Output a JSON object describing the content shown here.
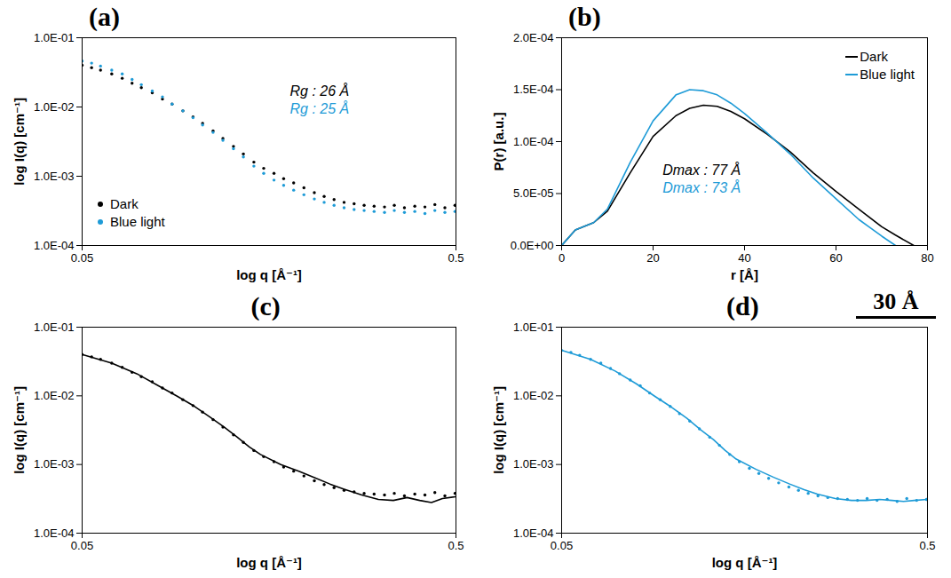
{
  "chart_data": [
    {
      "panel_label": "(a)",
      "type": "scatter",
      "log": true,
      "x_label": "log q [Å⁻¹]",
      "y_label": "log I(q) [cm⁻¹]",
      "xlim": [
        0.05,
        0.5
      ],
      "xticks": [
        0.05,
        0.5
      ],
      "ylim": [
        0.0001,
        0.1
      ],
      "yticks": [
        {
          "value": 0.0001,
          "label": "1.0E-04"
        },
        {
          "value": 0.001,
          "label": "1.0E-03"
        },
        {
          "value": 0.01,
          "label": "1.0E-02"
        },
        {
          "value": 0.1,
          "label": "1.0E-01"
        }
      ],
      "legend": "lower left",
      "annotations": [
        {
          "text": "Rg : 26 Å",
          "color": "#000000"
        },
        {
          "text": "Rg : 25 Å",
          "color": "#1e9bd7"
        }
      ],
      "x": [
        0.05,
        0.053,
        0.056,
        0.06,
        0.064,
        0.068,
        0.072,
        0.077,
        0.082,
        0.087,
        0.093,
        0.099,
        0.105,
        0.112,
        0.119,
        0.127,
        0.135,
        0.144,
        0.153,
        0.163,
        0.173,
        0.184,
        0.196,
        0.209,
        0.222,
        0.236,
        0.251,
        0.267,
        0.284,
        0.302,
        0.322,
        0.342,
        0.364,
        0.388,
        0.413,
        0.439,
        0.467,
        0.497
      ],
      "series": [
        {
          "name": "Dark",
          "color": "#000000",
          "marker": "circle",
          "values": [
            0.04,
            0.037,
            0.034,
            0.03,
            0.026,
            0.022,
            0.019,
            0.016,
            0.013,
            0.011,
            0.0088,
            0.0072,
            0.0058,
            0.0045,
            0.0035,
            0.0027,
            0.0021,
            0.0016,
            0.0013,
            0.0011,
            0.00092,
            0.0008,
            0.00068,
            0.00058,
            0.00051,
            0.00046,
            0.00042,
            0.0004,
            0.00038,
            0.00037,
            0.00036,
            0.00038,
            0.00035,
            0.00037,
            0.00036,
            0.00039,
            0.00035,
            0.00038
          ]
        },
        {
          "name": "Blue light",
          "color": "#1e9bd7",
          "marker": "circle",
          "values": [
            0.046,
            0.043,
            0.039,
            0.034,
            0.03,
            0.025,
            0.021,
            0.017,
            0.014,
            0.011,
            0.0088,
            0.007,
            0.0055,
            0.0043,
            0.0033,
            0.0025,
            0.0019,
            0.0014,
            0.0011,
            0.00088,
            0.00074,
            0.00063,
            0.00054,
            0.00047,
            0.00042,
            0.00038,
            0.00035,
            0.00033,
            0.00032,
            0.00031,
            0.0003,
            0.00032,
            0.0003,
            0.00031,
            0.00029,
            0.00032,
            0.0003,
            0.00031
          ]
        }
      ]
    },
    {
      "panel_label": "(b)",
      "type": "line",
      "x_label": "r [Å]",
      "y_label": "P(r) [a.u.]",
      "xlim": [
        0,
        80
      ],
      "xticks": [
        0,
        20,
        40,
        60,
        80
      ],
      "ylim": [
        0,
        0.0002
      ],
      "yticks": [
        {
          "value": 0,
          "label": "0.0E+00"
        },
        {
          "value": 5e-05,
          "label": "5.0E-05"
        },
        {
          "value": 0.0001,
          "label": "1.0E-04"
        },
        {
          "value": 0.00015,
          "label": "1.5E-04"
        },
        {
          "value": 0.0002,
          "label": "2.0E-04"
        }
      ],
      "legend": "upper right",
      "annotations": [
        {
          "text": "Dmax : 77 Å",
          "color": "#000000"
        },
        {
          "text": "Dmax : 73 Å",
          "color": "#1e9bd7"
        }
      ],
      "x": [
        0,
        3,
        7,
        10,
        15,
        20,
        25,
        28,
        31,
        34,
        37,
        40,
        45,
        50,
        55,
        60,
        65,
        70,
        73,
        77
      ],
      "series": [
        {
          "name": "Dark",
          "color": "#000000",
          "values": [
            0,
            1.5e-05,
            2.2e-05,
            3.3e-05,
            7e-05,
            0.000105,
            0.000125,
            0.000132,
            0.000135,
            0.000134,
            0.000129,
            0.000122,
            0.000107,
            9e-05,
            7e-05,
            5.2e-05,
            3.5e-05,
            1.8e-05,
            1e-05,
            0
          ]
        },
        {
          "name": "Blue light",
          "color": "#1e9bd7",
          "values": [
            0,
            1.5e-05,
            2.2e-05,
            3.5e-05,
            8e-05,
            0.00012,
            0.000145,
            0.00015,
            0.000149,
            0.000145,
            0.000137,
            0.000127,
            0.000108,
            8.8e-05,
            6.5e-05,
            4.5e-05,
            2.5e-05,
            9e-06,
            0,
            null
          ]
        }
      ]
    },
    {
      "panel_label": "(c)",
      "type": "scatter",
      "log": true,
      "x_label": "log q [Å⁻¹]",
      "y_label": "log I(q) [cm⁻¹]",
      "xlim": [
        0.05,
        0.5
      ],
      "xticks": [
        0.05,
        0.5
      ],
      "ylim": [
        0.0001,
        0.1
      ],
      "yticks": [
        {
          "value": 0.0001,
          "label": "1.0E-04"
        },
        {
          "value": 0.001,
          "label": "1.0E-03"
        },
        {
          "value": 0.01,
          "label": "1.0E-02"
        },
        {
          "value": 0.1,
          "label": "1.0E-01"
        }
      ],
      "series": [
        {
          "type": "scatter",
          "color": "#000000",
          "marker": "circle",
          "x": [
            0.05,
            0.053,
            0.056,
            0.06,
            0.064,
            0.068,
            0.072,
            0.077,
            0.082,
            0.087,
            0.093,
            0.099,
            0.105,
            0.112,
            0.119,
            0.127,
            0.135,
            0.144,
            0.153,
            0.163,
            0.173,
            0.184,
            0.196,
            0.209,
            0.222,
            0.236,
            0.251,
            0.267,
            0.284,
            0.302,
            0.322,
            0.342,
            0.364,
            0.388,
            0.413,
            0.439,
            0.467,
            0.497
          ],
          "values": [
            0.04,
            0.037,
            0.034,
            0.03,
            0.026,
            0.022,
            0.019,
            0.016,
            0.013,
            0.011,
            0.0088,
            0.0072,
            0.0058,
            0.0045,
            0.0035,
            0.0027,
            0.0021,
            0.0016,
            0.0013,
            0.0011,
            0.00092,
            0.0008,
            0.00068,
            0.00058,
            0.00051,
            0.00046,
            0.00042,
            0.0004,
            0.00038,
            0.00037,
            0.00036,
            0.00038,
            0.00035,
            0.00037,
            0.00036,
            0.00039,
            0.00035,
            0.00038
          ]
        },
        {
          "type": "line",
          "color": "#000000",
          "x": [
            0.05,
            0.06,
            0.07,
            0.08,
            0.09,
            0.1,
            0.11,
            0.12,
            0.13,
            0.14,
            0.15,
            0.17,
            0.19,
            0.21,
            0.23,
            0.25,
            0.28,
            0.31,
            0.34,
            0.37,
            0.4,
            0.43,
            0.46,
            0.5
          ],
          "values": [
            0.04,
            0.03,
            0.021,
            0.014,
            0.0098,
            0.007,
            0.0049,
            0.0035,
            0.0025,
            0.0018,
            0.0014,
            0.001,
            0.0008,
            0.00064,
            0.00052,
            0.00044,
            0.00036,
            0.00031,
            0.0003,
            0.00033,
            0.0003,
            0.00028,
            0.00032,
            0.00034
          ]
        }
      ]
    },
    {
      "panel_label": "(d)",
      "type": "scatter",
      "log": true,
      "x_label": "log q [Å⁻¹]",
      "y_label": "log I(q) [cm⁻¹]",
      "xlim": [
        0.05,
        0.5
      ],
      "xticks": [
        0.05,
        0.5
      ],
      "ylim": [
        0.0001,
        0.1
      ],
      "yticks": [
        {
          "value": 0.0001,
          "label": "1.0E-04"
        },
        {
          "value": 0.001,
          "label": "1.0E-03"
        },
        {
          "value": 0.01,
          "label": "1.0E-02"
        },
        {
          "value": 0.1,
          "label": "1.0E-01"
        }
      ],
      "series": [
        {
          "type": "scatter",
          "color": "#1e9bd7",
          "marker": "circle",
          "x": [
            0.05,
            0.053,
            0.056,
            0.06,
            0.064,
            0.068,
            0.072,
            0.077,
            0.082,
            0.087,
            0.093,
            0.099,
            0.105,
            0.112,
            0.119,
            0.127,
            0.135,
            0.144,
            0.153,
            0.163,
            0.173,
            0.184,
            0.196,
            0.209,
            0.222,
            0.236,
            0.251,
            0.267,
            0.284,
            0.302,
            0.322,
            0.342,
            0.364,
            0.388,
            0.413,
            0.439,
            0.467,
            0.497
          ],
          "values": [
            0.046,
            0.043,
            0.039,
            0.034,
            0.03,
            0.025,
            0.021,
            0.017,
            0.014,
            0.011,
            0.0088,
            0.007,
            0.0055,
            0.0043,
            0.0033,
            0.0025,
            0.0019,
            0.0014,
            0.0011,
            0.00088,
            0.00074,
            0.00063,
            0.00054,
            0.00047,
            0.00042,
            0.00038,
            0.00035,
            0.00033,
            0.00032,
            0.00031,
            0.0003,
            0.00032,
            0.0003,
            0.00031,
            0.00029,
            0.00032,
            0.0003,
            0.00031
          ]
        },
        {
          "type": "line",
          "color": "#1e9bd7",
          "x": [
            0.05,
            0.06,
            0.07,
            0.08,
            0.09,
            0.1,
            0.11,
            0.12,
            0.13,
            0.14,
            0.15,
            0.17,
            0.19,
            0.21,
            0.23,
            0.25,
            0.28,
            0.31,
            0.34,
            0.37,
            0.4,
            0.43,
            0.46,
            0.5
          ],
          "values": [
            0.046,
            0.034,
            0.023,
            0.015,
            0.0098,
            0.0068,
            0.0047,
            0.0032,
            0.0023,
            0.0016,
            0.0012,
            0.00085,
            0.00065,
            0.00052,
            0.00043,
            0.00037,
            0.00032,
            0.0003,
            0.0003,
            0.00031,
            0.0003,
            0.00029,
            0.0003,
            0.00031
          ]
        }
      ]
    }
  ],
  "scale_bar": "30 Å"
}
